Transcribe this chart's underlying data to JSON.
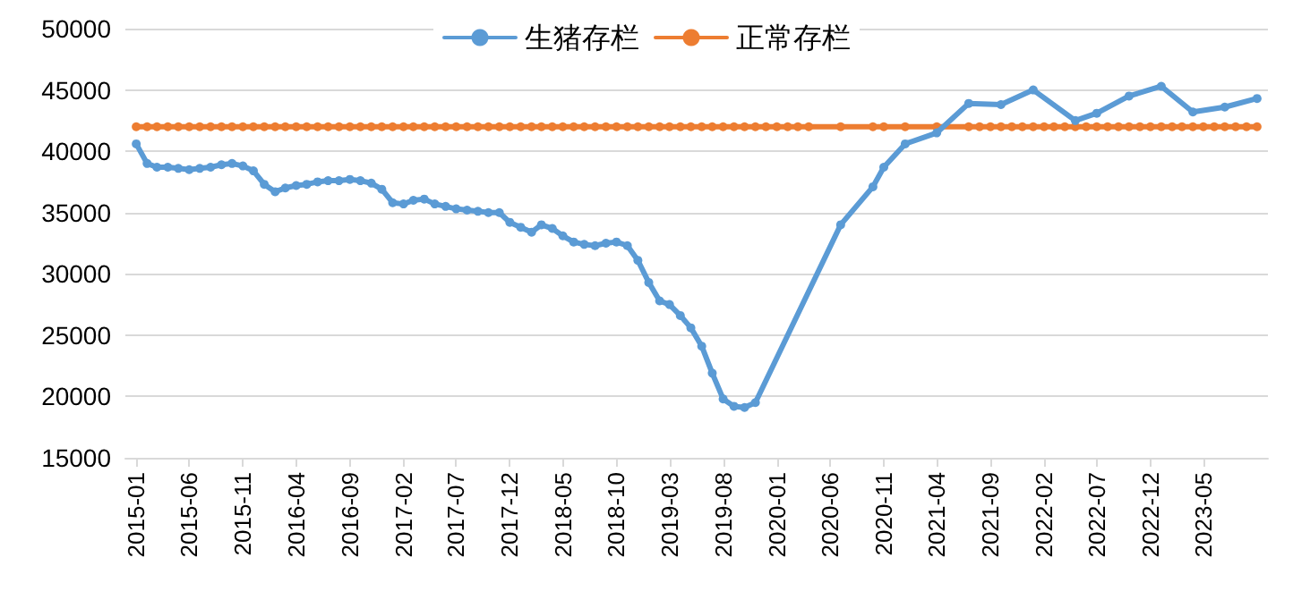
{
  "chart_data": {
    "type": "line",
    "legend": "top",
    "grid": "y",
    "marker": "circle",
    "line_style": "solid",
    "xlim": [
      "2014-12",
      "2023-11"
    ],
    "xticks": [
      "2015-01",
      "2015-06",
      "2015-11",
      "2016-04",
      "2016-09",
      "2017-02",
      "2017-07",
      "2017-12",
      "2018-05",
      "2018-10",
      "2019-03",
      "2019-08",
      "2020-01",
      "2020-06",
      "2020-11",
      "2021-04",
      "2021-09",
      "2022-02",
      "2022-07",
      "2022-12",
      "2023-05"
    ],
    "ylim": [
      15000,
      50000
    ],
    "yticks": [
      15000,
      20000,
      25000,
      30000,
      35000,
      40000,
      45000,
      50000
    ],
    "series": [
      {
        "name": "生猪存栏",
        "color": "#5b9bd5",
        "x": [
          "2015-01",
          "2015-02",
          "2015-03",
          "2015-04",
          "2015-05",
          "2015-06",
          "2015-07",
          "2015-08",
          "2015-09",
          "2015-10",
          "2015-11",
          "2015-12",
          "2016-01",
          "2016-02",
          "2016-03",
          "2016-04",
          "2016-05",
          "2016-06",
          "2016-07",
          "2016-08",
          "2016-09",
          "2016-10",
          "2016-11",
          "2016-12",
          "2017-01",
          "2017-02",
          "2017-03",
          "2017-04",
          "2017-05",
          "2017-06",
          "2017-07",
          "2017-08",
          "2017-09",
          "2017-10",
          "2017-11",
          "2017-12",
          "2018-01",
          "2018-02",
          "2018-03",
          "2018-04",
          "2018-05",
          "2018-06",
          "2018-07",
          "2018-08",
          "2018-09",
          "2018-10",
          "2018-11",
          "2018-12",
          "2019-01",
          "2019-02",
          "2019-03",
          "2019-04",
          "2019-05",
          "2019-06",
          "2019-07",
          "2019-08",
          "2019-09",
          "2019-10",
          "2019-11",
          "2020-07",
          "2020-10",
          "2020-11",
          "2021-01",
          "2021-04",
          "2021-07",
          "2021-10",
          "2022-01",
          "2022-05",
          "2022-07",
          "2022-10",
          "2023-01",
          "2023-04",
          "2023-07",
          "2023-10"
        ],
        "values": [
          40600,
          39000,
          38700,
          38700,
          38600,
          38500,
          38600,
          38700,
          38900,
          39000,
          38800,
          38400,
          37300,
          36700,
          37000,
          37200,
          37300,
          37500,
          37600,
          37600,
          37700,
          37600,
          37400,
          36900,
          35800,
          35700,
          36000,
          36100,
          35700,
          35500,
          35300,
          35200,
          35100,
          35000,
          35000,
          34200,
          33800,
          33400,
          34000,
          33700,
          33100,
          32600,
          32400,
          32300,
          32500,
          32600,
          32300,
          31100,
          29300,
          27800,
          27500,
          26600,
          25600,
          24100,
          21900,
          19800,
          19200,
          19100,
          19500,
          34000,
          37100,
          38700,
          40600,
          41500,
          43900,
          43800,
          45000,
          42500,
          43100,
          44500,
          45300,
          43200,
          43600,
          44300
        ]
      },
      {
        "name": "正常存栏",
        "color": "#ed7d31",
        "x": [
          "2015-01",
          "2015-02",
          "2015-03",
          "2015-04",
          "2015-05",
          "2015-06",
          "2015-07",
          "2015-08",
          "2015-09",
          "2015-10",
          "2015-11",
          "2015-12",
          "2016-01",
          "2016-02",
          "2016-03",
          "2016-04",
          "2016-05",
          "2016-06",
          "2016-07",
          "2016-08",
          "2016-09",
          "2016-10",
          "2016-11",
          "2016-12",
          "2017-01",
          "2017-02",
          "2017-03",
          "2017-04",
          "2017-05",
          "2017-06",
          "2017-07",
          "2017-08",
          "2017-09",
          "2017-10",
          "2017-11",
          "2017-12",
          "2018-01",
          "2018-02",
          "2018-03",
          "2018-04",
          "2018-05",
          "2018-06",
          "2018-07",
          "2018-08",
          "2018-09",
          "2018-10",
          "2018-11",
          "2018-12",
          "2019-01",
          "2019-02",
          "2019-03",
          "2019-04",
          "2019-05",
          "2019-06",
          "2019-07",
          "2019-08",
          "2019-09",
          "2019-10",
          "2019-11",
          "2019-12",
          "2020-01",
          "2020-02",
          "2020-03",
          "2020-04",
          "2020-07",
          "2020-10",
          "2020-11",
          "2021-01",
          "2021-04",
          "2021-07",
          "2021-08",
          "2021-09",
          "2021-10",
          "2021-11",
          "2021-12",
          "2022-01",
          "2022-02",
          "2022-03",
          "2022-04",
          "2022-05",
          "2022-06",
          "2022-07",
          "2022-08",
          "2022-09",
          "2022-10",
          "2022-11",
          "2022-12",
          "2023-01",
          "2023-02",
          "2023-03",
          "2023-04",
          "2023-05",
          "2023-06",
          "2023-07",
          "2023-08",
          "2023-09",
          "2023-10"
        ],
        "values": [
          42000,
          42000,
          42000,
          42000,
          42000,
          42000,
          42000,
          42000,
          42000,
          42000,
          42000,
          42000,
          42000,
          42000,
          42000,
          42000,
          42000,
          42000,
          42000,
          42000,
          42000,
          42000,
          42000,
          42000,
          42000,
          42000,
          42000,
          42000,
          42000,
          42000,
          42000,
          42000,
          42000,
          42000,
          42000,
          42000,
          42000,
          42000,
          42000,
          42000,
          42000,
          42000,
          42000,
          42000,
          42000,
          42000,
          42000,
          42000,
          42000,
          42000,
          42000,
          42000,
          42000,
          42000,
          42000,
          42000,
          42000,
          42000,
          42000,
          42000,
          42000,
          42000,
          42000,
          42000,
          42000,
          42000,
          42000,
          42000,
          42000,
          42000,
          42000,
          42000,
          42000,
          42000,
          42000,
          42000,
          42000,
          42000,
          42000,
          42000,
          42000,
          42000,
          42000,
          42000,
          42000,
          42000,
          42000,
          42000,
          42000,
          42000,
          42000,
          42000,
          42000,
          42000,
          42000,
          42000,
          42000
        ]
      }
    ]
  }
}
